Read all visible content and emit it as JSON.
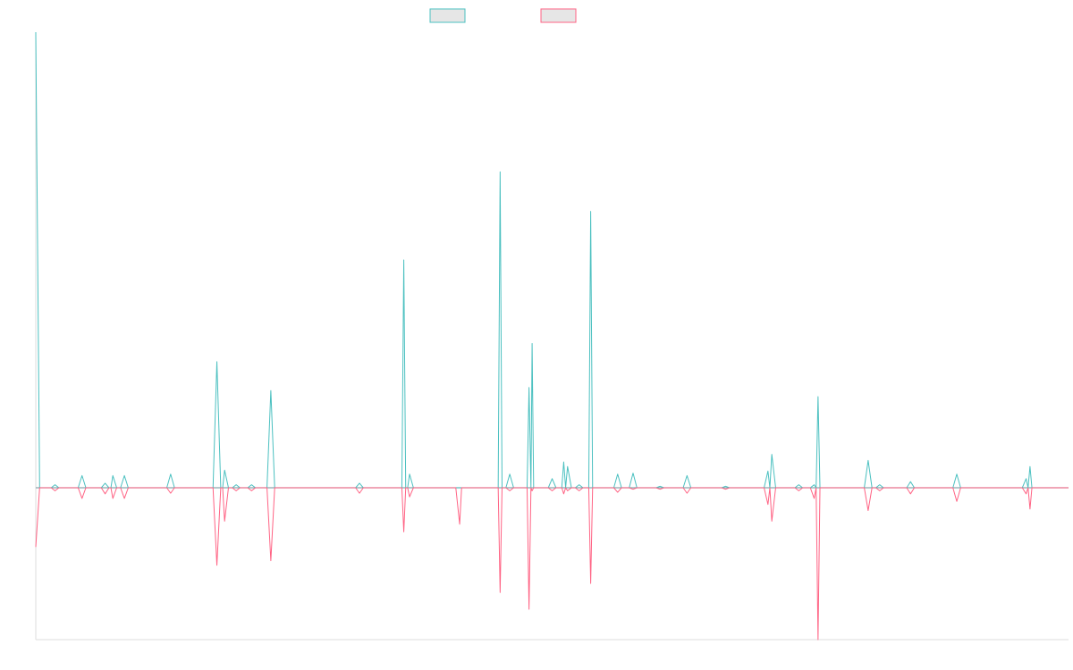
{
  "chart_data": {
    "type": "line",
    "title": "",
    "xlabel": "",
    "ylabel": "",
    "legend_position": "top-center",
    "grid": false,
    "x_count": 268,
    "ylim": [
      -0.5,
      1.5
    ],
    "colors": {
      "series_a": "#4bc0c0",
      "series_b": "#ff6384",
      "swatch_fill": "#e6e6e6",
      "axis": "#dddddd"
    },
    "series": [
      {
        "name": "",
        "color": "#4bc0c0",
        "points": [
          [
            0,
            1.5
          ],
          [
            1,
            0.0
          ],
          [
            4,
            0.0
          ],
          [
            5,
            0.01
          ],
          [
            6,
            0.0
          ],
          [
            11,
            0.0
          ],
          [
            12,
            0.04
          ],
          [
            13,
            0.0
          ],
          [
            17,
            0.0
          ],
          [
            18,
            0.015
          ],
          [
            19,
            0.0
          ],
          [
            19.5,
            0.0
          ],
          [
            20,
            0.04
          ],
          [
            21,
            0.0
          ],
          [
            22,
            0.0
          ],
          [
            23,
            0.04
          ],
          [
            24,
            0.0
          ],
          [
            34,
            0.0
          ],
          [
            35,
            0.045
          ],
          [
            36,
            0.0
          ],
          [
            46,
            0.0
          ],
          [
            47,
            0.415
          ],
          [
            48,
            0.0
          ],
          [
            48.5,
            0.0
          ],
          [
            49,
            0.058
          ],
          [
            50,
            0.0
          ],
          [
            51,
            0.0
          ],
          [
            52,
            0.01
          ],
          [
            53,
            0.0
          ],
          [
            55,
            0.0
          ],
          [
            56,
            0.01
          ],
          [
            57,
            0.0
          ],
          [
            60,
            0.0
          ],
          [
            61,
            0.32
          ],
          [
            62,
            0.0
          ],
          [
            83,
            0.0
          ],
          [
            84,
            0.015
          ],
          [
            85,
            0.0
          ],
          [
            95,
            0.0
          ],
          [
            95.5,
            0.75
          ],
          [
            96,
            0.0
          ],
          [
            96.5,
            0.0
          ],
          [
            97,
            0.045
          ],
          [
            98,
            0.0
          ],
          [
            120,
            0.0
          ],
          [
            120.5,
            1.04
          ],
          [
            121,
            0.0
          ],
          [
            122,
            0.0
          ],
          [
            123,
            0.045
          ],
          [
            124,
            0.0
          ],
          [
            127.5,
            0.0
          ],
          [
            128,
            0.33
          ],
          [
            128.5,
            0.0
          ],
          [
            128.8,
            0.475
          ],
          [
            129.2,
            0.0
          ],
          [
            133,
            0.0
          ],
          [
            134,
            0.03
          ],
          [
            135,
            0.0
          ],
          [
            136.5,
            0.0
          ],
          [
            137,
            0.085
          ],
          [
            137.5,
            0.0
          ],
          [
            138,
            0.07
          ],
          [
            139,
            0.0
          ],
          [
            140,
            0.0
          ],
          [
            141,
            0.01
          ],
          [
            142,
            0.0
          ],
          [
            143.5,
            0.0
          ],
          [
            144,
            0.91
          ],
          [
            144.5,
            0.0
          ],
          [
            150,
            0.0
          ],
          [
            151,
            0.045
          ],
          [
            152,
            0.0
          ],
          [
            154,
            0.0
          ],
          [
            155,
            0.048
          ],
          [
            156,
            0.0
          ],
          [
            161,
            0.0
          ],
          [
            162,
            0.005
          ],
          [
            163,
            0.0
          ],
          [
            168,
            0.0
          ],
          [
            169,
            0.04
          ],
          [
            170,
            0.0
          ],
          [
            178,
            0.0
          ],
          [
            179,
            0.005
          ],
          [
            180,
            0.0
          ],
          [
            189,
            0.0
          ],
          [
            190,
            0.055
          ],
          [
            190.5,
            0.0
          ],
          [
            191,
            0.11
          ],
          [
            192,
            0.0
          ],
          [
            197,
            0.0
          ],
          [
            198,
            0.01
          ],
          [
            199,
            0.0
          ],
          [
            201,
            0.0
          ],
          [
            202,
            0.01
          ],
          [
            202.5,
            0.0
          ],
          [
            203,
            0.3
          ],
          [
            203.5,
            0.0
          ],
          [
            215,
            0.0
          ],
          [
            216,
            0.09
          ],
          [
            217,
            0.0
          ],
          [
            218,
            0.0
          ],
          [
            219,
            0.01
          ],
          [
            220,
            0.0
          ],
          [
            226,
            0.0
          ],
          [
            227,
            0.02
          ],
          [
            228,
            0.0
          ],
          [
            238,
            0.0
          ],
          [
            239,
            0.045
          ],
          [
            240,
            0.0
          ],
          [
            256,
            0.0
          ],
          [
            257,
            0.03
          ],
          [
            257.5,
            0.0
          ],
          [
            258,
            0.07
          ],
          [
            258.5,
            0.0
          ],
          [
            268,
            0.0
          ]
        ]
      },
      {
        "name": "",
        "color": "#ff6384",
        "points": [
          [
            0,
            -0.195
          ],
          [
            1,
            0.0
          ],
          [
            4,
            0.0
          ],
          [
            5,
            -0.01
          ],
          [
            6,
            0.0
          ],
          [
            11,
            0.0
          ],
          [
            12,
            -0.035
          ],
          [
            13,
            0.0
          ],
          [
            17,
            0.0
          ],
          [
            18,
            -0.02
          ],
          [
            19,
            0.0
          ],
          [
            19.5,
            0.0
          ],
          [
            20,
            -0.035
          ],
          [
            21,
            0.0
          ],
          [
            22,
            0.0
          ],
          [
            23,
            -0.035
          ],
          [
            24,
            0.0
          ],
          [
            34,
            0.0
          ],
          [
            35,
            -0.018
          ],
          [
            36,
            0.0
          ],
          [
            46,
            0.0
          ],
          [
            47,
            -0.255
          ],
          [
            48,
            0.0
          ],
          [
            48.5,
            0.0
          ],
          [
            49,
            -0.11
          ],
          [
            50,
            0.0
          ],
          [
            51,
            0.0
          ],
          [
            52,
            -0.01
          ],
          [
            53,
            0.0
          ],
          [
            55,
            0.0
          ],
          [
            56,
            -0.01
          ],
          [
            57,
            0.0
          ],
          [
            60,
            0.0
          ],
          [
            61,
            -0.24
          ],
          [
            62,
            0.0
          ],
          [
            83,
            0.0
          ],
          [
            84,
            -0.018
          ],
          [
            85,
            0.0
          ],
          [
            95,
            0.0
          ],
          [
            95.5,
            -0.145
          ],
          [
            96,
            0.0
          ],
          [
            96.5,
            0.0
          ],
          [
            97,
            -0.03
          ],
          [
            98,
            0.0
          ],
          [
            109,
            0.0
          ],
          [
            110,
            -0.12
          ],
          [
            110.5,
            0.0
          ],
          [
            120,
            0.0
          ],
          [
            120.5,
            -0.345
          ],
          [
            121,
            0.0
          ],
          [
            122,
            0.0
          ],
          [
            123,
            -0.01
          ],
          [
            124,
            0.0
          ],
          [
            127.5,
            0.0
          ],
          [
            128,
            -0.4
          ],
          [
            128.5,
            0.0
          ],
          [
            128.8,
            -0.01
          ],
          [
            129.2,
            0.0
          ],
          [
            133,
            0.0
          ],
          [
            134,
            -0.01
          ],
          [
            135,
            0.0
          ],
          [
            136.5,
            0.0
          ],
          [
            137,
            -0.02
          ],
          [
            137.5,
            0.0
          ],
          [
            138,
            -0.01
          ],
          [
            139,
            0.0
          ],
          [
            140,
            0.0
          ],
          [
            141,
            -0.01
          ],
          [
            142,
            0.0
          ],
          [
            143.5,
            0.0
          ],
          [
            144,
            -0.315
          ],
          [
            144.5,
            0.0
          ],
          [
            150,
            0.0
          ],
          [
            151,
            -0.015
          ],
          [
            152,
            0.0
          ],
          [
            154,
            0.0
          ],
          [
            155,
            -0.005
          ],
          [
            156,
            0.0
          ],
          [
            161,
            0.0
          ],
          [
            162,
            -0.005
          ],
          [
            163,
            0.0
          ],
          [
            168,
            0.0
          ],
          [
            169,
            -0.018
          ],
          [
            170,
            0.0
          ],
          [
            178,
            0.0
          ],
          [
            179,
            -0.005
          ],
          [
            180,
            0.0
          ],
          [
            189,
            0.0
          ],
          [
            190,
            -0.055
          ],
          [
            190.5,
            0.0
          ],
          [
            191,
            -0.11
          ],
          [
            192,
            0.0
          ],
          [
            197,
            0.0
          ],
          [
            198,
            -0.01
          ],
          [
            199,
            0.0
          ],
          [
            201,
            0.0
          ],
          [
            202,
            -0.035
          ],
          [
            202.5,
            0.0
          ],
          [
            203,
            -0.5
          ],
          [
            203.5,
            0.0
          ],
          [
            215,
            0.0
          ],
          [
            216,
            -0.075
          ],
          [
            217,
            0.0
          ],
          [
            218,
            0.0
          ],
          [
            219,
            -0.01
          ],
          [
            220,
            0.0
          ],
          [
            226,
            0.0
          ],
          [
            227,
            -0.02
          ],
          [
            228,
            0.0
          ],
          [
            238,
            0.0
          ],
          [
            239,
            -0.045
          ],
          [
            240,
            0.0
          ],
          [
            256,
            0.0
          ],
          [
            257,
            -0.02
          ],
          [
            257.5,
            0.0
          ],
          [
            258,
            -0.07
          ],
          [
            258.5,
            0.0
          ],
          [
            268,
            0.0
          ]
        ]
      }
    ]
  }
}
